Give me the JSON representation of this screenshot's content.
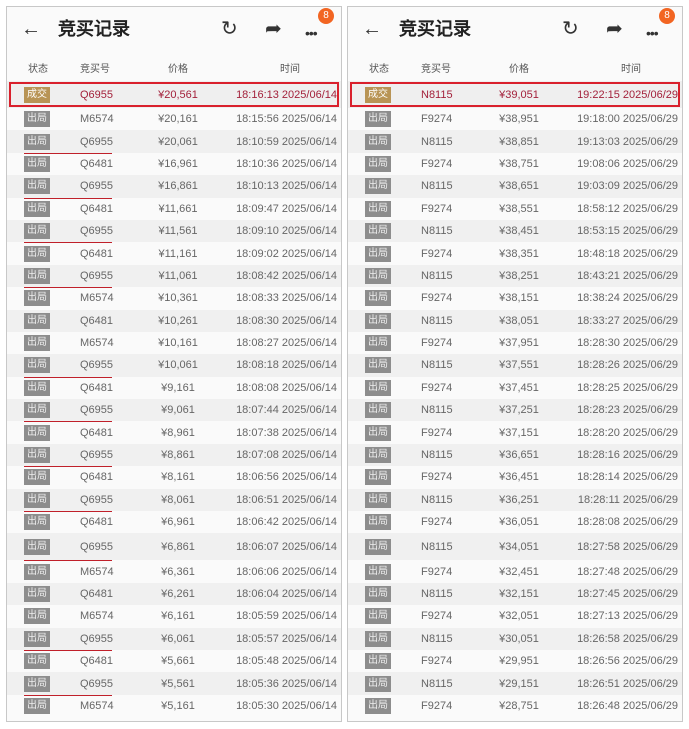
{
  "header": {
    "title": "竞买记录",
    "back_icon": "arrow-left-icon",
    "refresh_icon": "refresh-icon",
    "share_icon": "share-icon",
    "more_icon": "more-icon",
    "badge": "8",
    "badge_color": "#f26522"
  },
  "columns": [
    "状态",
    "竞买号",
    "价格",
    "时间"
  ],
  "highlight_color": "#d9202c",
  "panels": [
    {
      "rows": [
        [
          "成交",
          "Q6955",
          "¥20,561",
          "18:16:13 2025/06/14"
        ],
        [
          "出局",
          "M6574",
          "¥20,161",
          "18:15:56 2025/06/14"
        ],
        [
          "出局",
          "Q6955",
          "¥20,061",
          "18:10:59 2025/06/14"
        ],
        [
          "出局",
          "Q6481",
          "¥16,961",
          "18:10:36 2025/06/14"
        ],
        [
          "出局",
          "Q6955",
          "¥16,861",
          "18:10:13 2025/06/14"
        ],
        [
          "出局",
          "Q6481",
          "¥11,661",
          "18:09:47 2025/06/14"
        ],
        [
          "出局",
          "Q6955",
          "¥11,561",
          "18:09:10 2025/06/14"
        ],
        [
          "出局",
          "Q6481",
          "¥11,161",
          "18:09:02 2025/06/14"
        ],
        [
          "出局",
          "Q6955",
          "¥11,061",
          "18:08:42 2025/06/14"
        ],
        [
          "出局",
          "M6574",
          "¥10,361",
          "18:08:33 2025/06/14"
        ],
        [
          "出局",
          "Q6481",
          "¥10,261",
          "18:08:30 2025/06/14"
        ],
        [
          "出局",
          "M6574",
          "¥10,161",
          "18:08:27 2025/06/14"
        ],
        [
          "出局",
          "Q6955",
          "¥10,061",
          "18:08:18 2025/06/14"
        ],
        [
          "出局",
          "Q6481",
          "¥9,161",
          "18:08:08 2025/06/14"
        ],
        [
          "出局",
          "Q6955",
          "¥9,061",
          "18:07:44 2025/06/14"
        ],
        [
          "出局",
          "Q6481",
          "¥8,961",
          "18:07:38 2025/06/14"
        ],
        [
          "出局",
          "Q6955",
          "¥8,861",
          "18:07:08 2025/06/14"
        ],
        [
          "出局",
          "Q6481",
          "¥8,161",
          "18:06:56 2025/06/14"
        ],
        [
          "出局",
          "Q6955",
          "¥8,061",
          "18:06:51 2025/06/14"
        ],
        [
          "出局",
          "Q6481",
          "¥6,961",
          "18:06:42 2025/06/14"
        ],
        [
          "出局",
          "Q6955",
          "¥6,861",
          "18:06:07 2025/06/14"
        ],
        [
          "出局",
          "M6574",
          "¥6,361",
          "18:06:06 2025/06/14"
        ],
        [
          "出局",
          "Q6481",
          "¥6,261",
          "18:06:04 2025/06/14"
        ],
        [
          "出局",
          "M6574",
          "¥6,161",
          "18:05:59 2025/06/14"
        ],
        [
          "出局",
          "Q6955",
          "¥6,061",
          "18:05:57 2025/06/14"
        ],
        [
          "出局",
          "Q6481",
          "¥5,661",
          "18:05:48 2025/06/14"
        ],
        [
          "出局",
          "Q6955",
          "¥5,561",
          "18:05:36 2025/06/14"
        ],
        [
          "出局",
          "M6574",
          "¥5,161",
          "18:05:30 2025/06/14"
        ]
      ]
    },
    {
      "rows": [
        [
          "成交",
          "N8115",
          "¥39,051",
          "19:22:15 2025/06/29"
        ],
        [
          "出局",
          "F9274",
          "¥38,951",
          "19:18:00 2025/06/29"
        ],
        [
          "出局",
          "N8115",
          "¥38,851",
          "19:13:03 2025/06/29"
        ],
        [
          "出局",
          "F9274",
          "¥38,751",
          "19:08:06 2025/06/29"
        ],
        [
          "出局",
          "N8115",
          "¥38,651",
          "19:03:09 2025/06/29"
        ],
        [
          "出局",
          "F9274",
          "¥38,551",
          "18:58:12 2025/06/29"
        ],
        [
          "出局",
          "N8115",
          "¥38,451",
          "18:53:15 2025/06/29"
        ],
        [
          "出局",
          "F9274",
          "¥38,351",
          "18:48:18 2025/06/29"
        ],
        [
          "出局",
          "N8115",
          "¥38,251",
          "18:43:21 2025/06/29"
        ],
        [
          "出局",
          "F9274",
          "¥38,151",
          "18:38:24 2025/06/29"
        ],
        [
          "出局",
          "N8115",
          "¥38,051",
          "18:33:27 2025/06/29"
        ],
        [
          "出局",
          "F9274",
          "¥37,951",
          "18:28:30 2025/06/29"
        ],
        [
          "出局",
          "N8115",
          "¥37,551",
          "18:28:26 2025/06/29"
        ],
        [
          "出局",
          "F9274",
          "¥37,451",
          "18:28:25 2025/06/29"
        ],
        [
          "出局",
          "N8115",
          "¥37,251",
          "18:28:23 2025/06/29"
        ],
        [
          "出局",
          "F9274",
          "¥37,151",
          "18:28:20 2025/06/29"
        ],
        [
          "出局",
          "N8115",
          "¥36,651",
          "18:28:16 2025/06/29"
        ],
        [
          "出局",
          "F9274",
          "¥36,451",
          "18:28:14 2025/06/29"
        ],
        [
          "出局",
          "N8115",
          "¥36,251",
          "18:28:11 2025/06/29"
        ],
        [
          "出局",
          "F9274",
          "¥36,051",
          "18:28:08 2025/06/29"
        ],
        [
          "出局",
          "N8115",
          "¥34,051",
          "18:27:58 2025/06/29"
        ],
        [
          "出局",
          "F9274",
          "¥32,451",
          "18:27:48 2025/06/29"
        ],
        [
          "出局",
          "N8115",
          "¥32,151",
          "18:27:45 2025/06/29"
        ],
        [
          "出局",
          "F9274",
          "¥32,051",
          "18:27:13 2025/06/29"
        ],
        [
          "出局",
          "N8115",
          "¥30,051",
          "18:26:58 2025/06/29"
        ],
        [
          "出局",
          "F9274",
          "¥29,951",
          "18:26:56 2025/06/29"
        ],
        [
          "出局",
          "N8115",
          "¥29,151",
          "18:26:51 2025/06/29"
        ],
        [
          "出局",
          "F9274",
          "¥28,751",
          "18:26:48 2025/06/29"
        ]
      ]
    }
  ]
}
